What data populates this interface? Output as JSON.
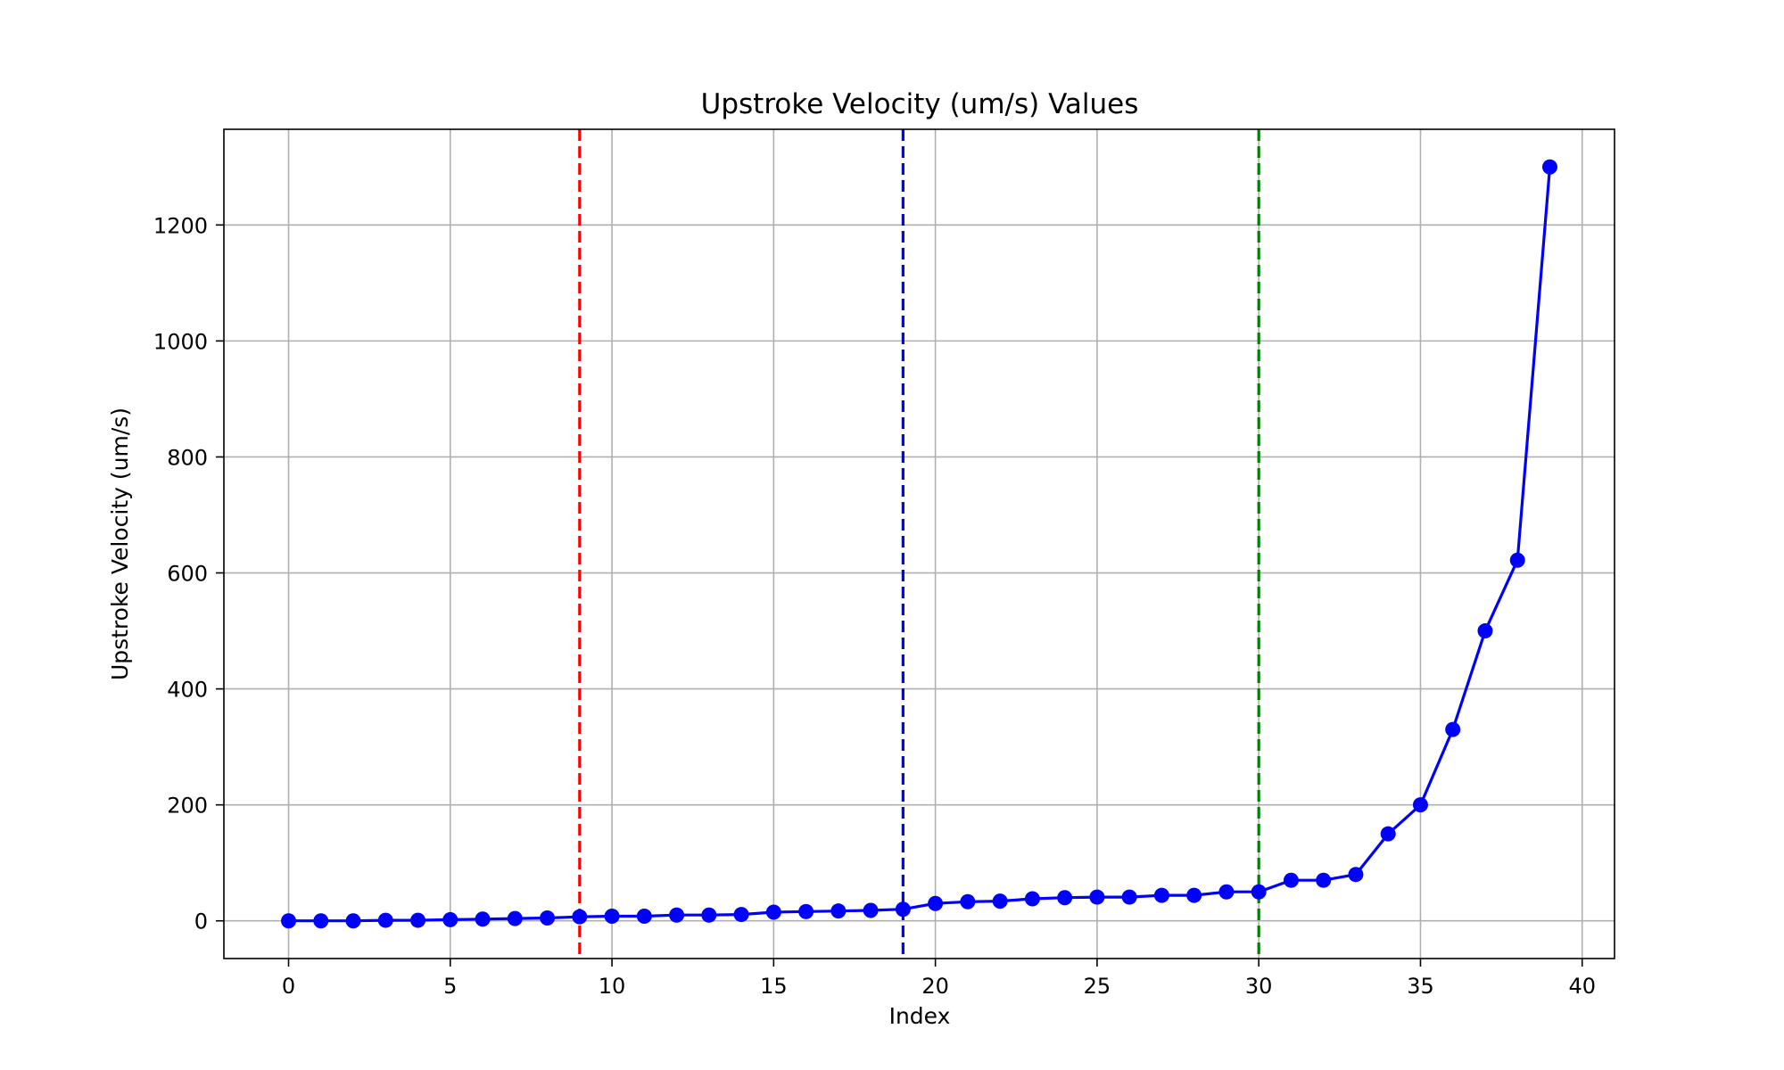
{
  "chart_data": {
    "type": "line",
    "title": "Upstroke Velocity (um/s) Values",
    "xlabel": "Index",
    "ylabel": "Upstroke Velocity (um/s)",
    "xlim": [
      -2,
      41
    ],
    "ylim": [
      -65,
      1365
    ],
    "xticks": [
      0,
      5,
      10,
      15,
      20,
      25,
      30,
      35,
      40
    ],
    "yticks": [
      0,
      200,
      400,
      600,
      800,
      1000,
      1200
    ],
    "grid": true,
    "series": [
      {
        "color": "#0000ff",
        "marker": "circle",
        "x": [
          0,
          1,
          2,
          3,
          4,
          5,
          6,
          7,
          8,
          9,
          10,
          11,
          12,
          13,
          14,
          15,
          16,
          17,
          18,
          19,
          20,
          21,
          22,
          23,
          24,
          25,
          26,
          27,
          28,
          29,
          30,
          31,
          32,
          33,
          34,
          35,
          36,
          37,
          38,
          39
        ],
        "y": [
          0,
          0,
          0,
          1,
          1,
          2,
          3,
          4,
          5,
          7,
          8,
          8,
          10,
          10,
          11,
          15,
          16,
          17,
          18,
          20,
          30,
          33,
          34,
          38,
          40,
          41,
          41,
          44,
          44,
          50,
          50,
          70,
          70,
          80,
          150,
          200,
          330,
          500,
          622,
          1300
        ]
      }
    ],
    "vlines": [
      {
        "x": 9,
        "color": "#ff0000",
        "style": "dashed"
      },
      {
        "x": 19,
        "color": "#0000ff",
        "style": "dashed"
      },
      {
        "x": 30,
        "color": "#008000",
        "style": "dashed"
      }
    ]
  }
}
